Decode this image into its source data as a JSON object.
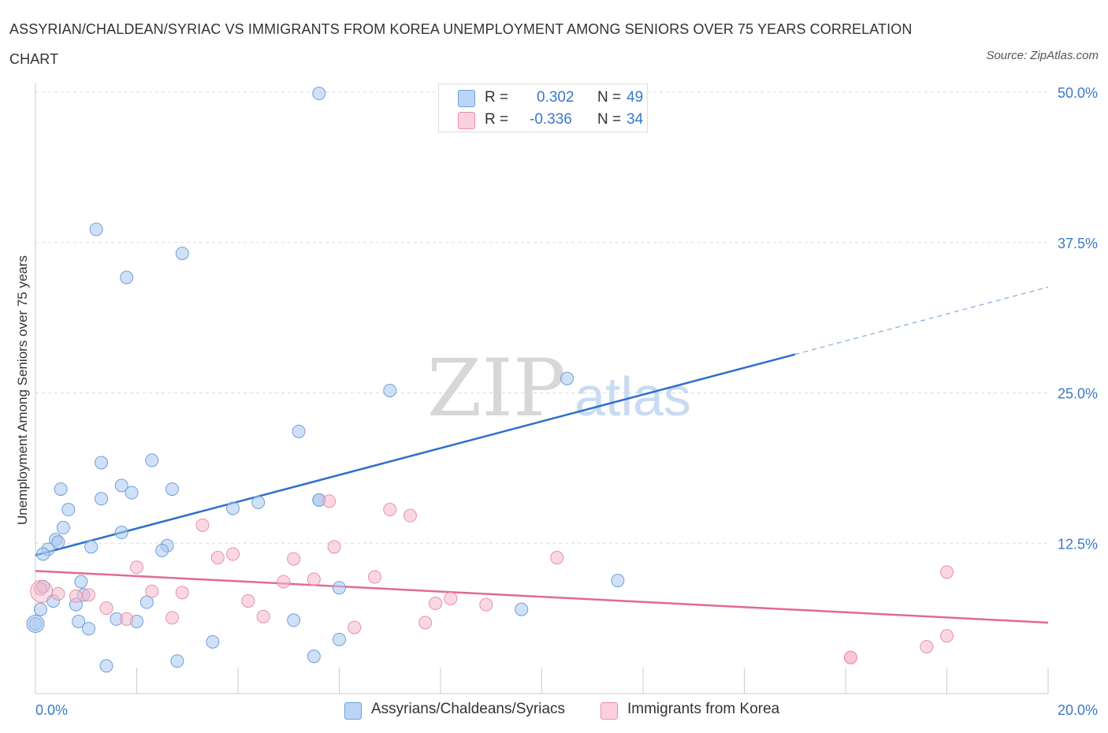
{
  "title": "ASSYRIAN/CHALDEAN/SYRIAC VS IMMIGRANTS FROM KOREA UNEMPLOYMENT AMONG SENIORS OVER 75 YEARS CORRELATION CHART",
  "source": "Source: ZipAtlas.com",
  "watermark": {
    "zip": "ZIP",
    "atlas": "atlas"
  },
  "stats": [
    {
      "r_label": "R =",
      "r_value": "0.302",
      "n_label": "N =",
      "n_value": "49",
      "color": "#a9c8f0"
    },
    {
      "r_label": "R =",
      "r_value": "-0.336",
      "n_label": "N =",
      "n_value": "34",
      "color": "#f5b8cb"
    }
  ],
  "legend": [
    {
      "label": "Assyrians/Chaldeans/Syriacs",
      "color": "#a9c8f0"
    },
    {
      "label": "Immigrants from Korea",
      "color": "#f5b8cb"
    }
  ],
  "chart_data": {
    "type": "scatter",
    "title": "ASSYRIAN/CHALDEAN/SYRIAC VS IMMIGRANTS FROM KOREA UNEMPLOYMENT AMONG SENIORS OVER 75 YEARS CORRELATION CHART",
    "xlabel": "",
    "ylabel": "Unemployment Among Seniors over 75 years",
    "xlim": [
      0,
      20
    ],
    "ylim": [
      0,
      50
    ],
    "x_tick_labels": [
      "0.0%",
      "20.0%"
    ],
    "y_tick_labels": [
      {
        "value": 12.5,
        "label": "12.5%"
      },
      {
        "value": 25,
        "label": "25.0%"
      },
      {
        "value": 37.5,
        "label": "37.5%"
      },
      {
        "value": 50,
        "label": "50.0%"
      }
    ],
    "grid": true,
    "legend_position": "bottom",
    "series": [
      {
        "name": "Assyrians/Chaldeans/Syriacs",
        "color": "#a9c8f0",
        "stroke": "#6f9fd8",
        "line_color": "#2f6fcc",
        "trend": {
          "x0": 0,
          "y0": 11.5,
          "x1": 15,
          "y1": 28.2,
          "dash_x1": 20,
          "dash_y1": 33.8
        },
        "points": [
          {
            "x": 5.6,
            "y": 49.9
          },
          {
            "x": 1.2,
            "y": 38.6
          },
          {
            "x": 2.9,
            "y": 36.6
          },
          {
            "x": 1.8,
            "y": 34.6
          },
          {
            "x": 10.5,
            "y": 26.2
          },
          {
            "x": 7.0,
            "y": 25.2
          },
          {
            "x": 5.2,
            "y": 21.8
          },
          {
            "x": 1.3,
            "y": 19.2
          },
          {
            "x": 2.3,
            "y": 19.4
          },
          {
            "x": 0.5,
            "y": 17.0
          },
          {
            "x": 1.7,
            "y": 17.3
          },
          {
            "x": 1.9,
            "y": 16.7
          },
          {
            "x": 2.7,
            "y": 17.0
          },
          {
            "x": 1.3,
            "y": 16.2
          },
          {
            "x": 5.6,
            "y": 16.1
          },
          {
            "x": 4.4,
            "y": 15.9
          },
          {
            "x": 3.9,
            "y": 15.4
          },
          {
            "x": 0.65,
            "y": 15.3
          },
          {
            "x": 0.55,
            "y": 13.8
          },
          {
            "x": 1.7,
            "y": 13.4
          },
          {
            "x": 0.4,
            "y": 12.8
          },
          {
            "x": 0.45,
            "y": 12.6
          },
          {
            "x": 0.25,
            "y": 12.0
          },
          {
            "x": 0.15,
            "y": 11.6
          },
          {
            "x": 1.1,
            "y": 12.2
          },
          {
            "x": 2.6,
            "y": 12.3
          },
          {
            "x": 2.5,
            "y": 11.9
          },
          {
            "x": 0.9,
            "y": 9.3
          },
          {
            "x": 0.15,
            "y": 8.9
          },
          {
            "x": 6.0,
            "y": 8.8
          },
          {
            "x": 11.5,
            "y": 9.4
          },
          {
            "x": 0.95,
            "y": 8.2
          },
          {
            "x": 0.35,
            "y": 7.7
          },
          {
            "x": 0.8,
            "y": 7.4
          },
          {
            "x": 2.2,
            "y": 7.6
          },
          {
            "x": 0.1,
            "y": 7.0
          },
          {
            "x": 9.6,
            "y": 7.0
          },
          {
            "x": 1.6,
            "y": 6.2
          },
          {
            "x": 2.0,
            "y": 6.0
          },
          {
            "x": 0.85,
            "y": 6.0
          },
          {
            "x": 5.1,
            "y": 6.1
          },
          {
            "x": 0.0,
            "y": 5.8
          },
          {
            "x": 1.05,
            "y": 5.4
          },
          {
            "x": 3.5,
            "y": 4.3
          },
          {
            "x": 6.0,
            "y": 4.5
          },
          {
            "x": 5.5,
            "y": 3.1
          },
          {
            "x": 2.8,
            "y": 2.7
          },
          {
            "x": 1.4,
            "y": 2.3
          },
          {
            "x": 5.6,
            "y": 16.1
          }
        ]
      },
      {
        "name": "Immigrants from Korea",
        "color": "#f5b8cb",
        "stroke": "#e88fab",
        "line_color": "#e06a98",
        "trend": {
          "x0": 0,
          "y0": 10.2,
          "x1": 20,
          "y1": 5.9
        },
        "points": [
          {
            "x": 5.8,
            "y": 16.0
          },
          {
            "x": 7.0,
            "y": 15.3
          },
          {
            "x": 7.4,
            "y": 14.8
          },
          {
            "x": 3.3,
            "y": 14.0
          },
          {
            "x": 5.9,
            "y": 12.2
          },
          {
            "x": 3.9,
            "y": 11.6
          },
          {
            "x": 3.6,
            "y": 11.3
          },
          {
            "x": 5.1,
            "y": 11.2
          },
          {
            "x": 10.3,
            "y": 11.3
          },
          {
            "x": 2.0,
            "y": 10.5
          },
          {
            "x": 18.0,
            "y": 10.1
          },
          {
            "x": 6.7,
            "y": 9.7
          },
          {
            "x": 4.9,
            "y": 9.3
          },
          {
            "x": 5.5,
            "y": 9.5
          },
          {
            "x": 0.1,
            "y": 8.7
          },
          {
            "x": 0.45,
            "y": 8.3
          },
          {
            "x": 1.05,
            "y": 8.2
          },
          {
            "x": 0.8,
            "y": 8.1
          },
          {
            "x": 2.3,
            "y": 8.5
          },
          {
            "x": 2.9,
            "y": 8.4
          },
          {
            "x": 4.2,
            "y": 7.7
          },
          {
            "x": 8.2,
            "y": 7.9
          },
          {
            "x": 7.9,
            "y": 7.5
          },
          {
            "x": 8.9,
            "y": 7.4
          },
          {
            "x": 1.4,
            "y": 7.1
          },
          {
            "x": 1.8,
            "y": 6.2
          },
          {
            "x": 2.7,
            "y": 6.3
          },
          {
            "x": 4.5,
            "y": 6.4
          },
          {
            "x": 7.7,
            "y": 5.9
          },
          {
            "x": 6.3,
            "y": 5.5
          },
          {
            "x": 18.0,
            "y": 4.8
          },
          {
            "x": 17.6,
            "y": 3.9
          },
          {
            "x": 16.1,
            "y": 3.0
          },
          {
            "x": 16.1,
            "y": 3.0
          }
        ]
      }
    ]
  }
}
